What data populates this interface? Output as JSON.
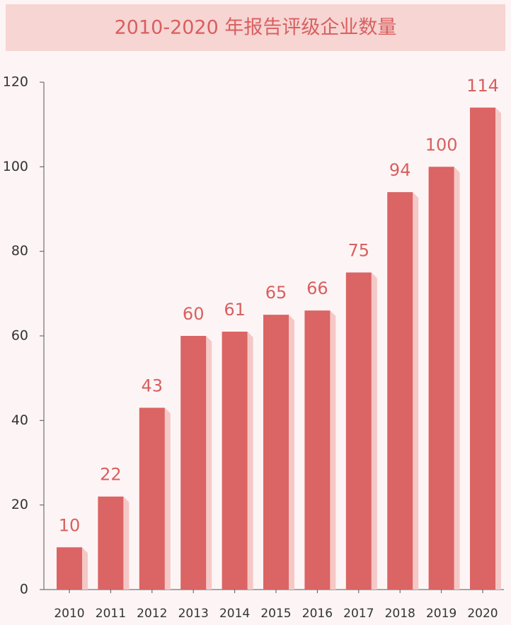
{
  "chart_data": {
    "type": "bar",
    "title": "2010-2020 年报告评级企业数量",
    "categories": [
      "2010",
      "2011",
      "2012",
      "2013",
      "2014",
      "2015",
      "2016",
      "2017",
      "2018",
      "2019",
      "2020"
    ],
    "values": [
      10,
      22,
      43,
      60,
      61,
      65,
      66,
      75,
      94,
      100,
      114
    ],
    "color": "#db6464",
    "ylim": [
      0,
      120
    ],
    "yticks": [
      0,
      20,
      40,
      60,
      80,
      100,
      120
    ],
    "grid": false
  }
}
